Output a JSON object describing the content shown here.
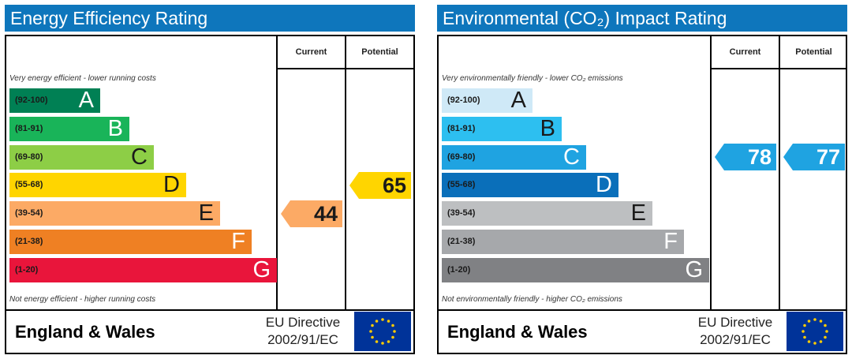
{
  "panels": [
    {
      "title": "Energy Efficiency Rating",
      "title_color": "#0e76bc",
      "col_current": "Current",
      "col_potential": "Potential",
      "top_note": "Very energy efficient - lower running costs",
      "bottom_note": "Not energy efficient - higher running costs",
      "bands": [
        {
          "range": "(92-100)",
          "letter": "A",
          "color": "#008054"
        },
        {
          "range": "(81-91)",
          "letter": "B",
          "color": "#19b459"
        },
        {
          "range": "(69-80)",
          "letter": "C",
          "color": "#8dce46"
        },
        {
          "range": "(55-68)",
          "letter": "D",
          "color": "#ffd500"
        },
        {
          "range": "(39-54)",
          "letter": "E",
          "color": "#fcaa65"
        },
        {
          "range": "(21-38)",
          "letter": "F",
          "color": "#ef8023"
        },
        {
          "range": "(1-20)",
          "letter": "G",
          "color": "#e9153b"
        }
      ],
      "current": {
        "value": "44",
        "band": "E",
        "color": "#fcaa65"
      },
      "potential": {
        "value": "65",
        "band": "D",
        "color": "#ffd500"
      },
      "footer_label": "England & Wales",
      "directive_line1": "EU Directive",
      "directive_line2": "2002/91/EC"
    },
    {
      "title": "Environmental (CO₂) Impact Rating",
      "title_color": "#0e76bc",
      "col_current": "Current",
      "col_potential": "Potential",
      "top_note": "Very environmentally friendly - lower CO₂ emissions",
      "bottom_note": "Not environmentally friendly - higher CO₂ emissions",
      "bands": [
        {
          "range": "(92-100)",
          "letter": "A",
          "color": "#cfe9f7"
        },
        {
          "range": "(81-91)",
          "letter": "B",
          "color": "#2dbff0"
        },
        {
          "range": "(69-80)",
          "letter": "C",
          "color": "#1fa3e1"
        },
        {
          "range": "(55-68)",
          "letter": "D",
          "color": "#0a6fba"
        },
        {
          "range": "(39-54)",
          "letter": "E",
          "color": "#bdbfc1"
        },
        {
          "range": "(21-38)",
          "letter": "F",
          "color": "#a6a8ab"
        },
        {
          "range": "(1-20)",
          "letter": "G",
          "color": "#808184"
        }
      ],
      "current": {
        "value": "78",
        "band": "C",
        "color": "#1fa3e1"
      },
      "potential": {
        "value": "77",
        "band": "C",
        "color": "#1fa3e1"
      },
      "footer_label": "England & Wales",
      "directive_line1": "EU Directive",
      "directive_line2": "2002/91/EC"
    }
  ],
  "icons": {
    "eu_flag": "eu-flag-icon"
  },
  "chart_data": [
    {
      "type": "bar",
      "title": "Energy Efficiency Rating",
      "categories": [
        "A (92-100)",
        "B (81-91)",
        "C (69-80)",
        "D (55-68)",
        "E (39-54)",
        "F (21-38)",
        "G (1-20)"
      ],
      "current": 44,
      "potential": 65
    },
    {
      "type": "bar",
      "title": "Environmental (CO₂) Impact Rating",
      "categories": [
        "A (92-100)",
        "B (81-91)",
        "C (69-80)",
        "D (55-68)",
        "E (39-54)",
        "F (21-38)",
        "G (1-20)"
      ],
      "current": 78,
      "potential": 77
    }
  ]
}
